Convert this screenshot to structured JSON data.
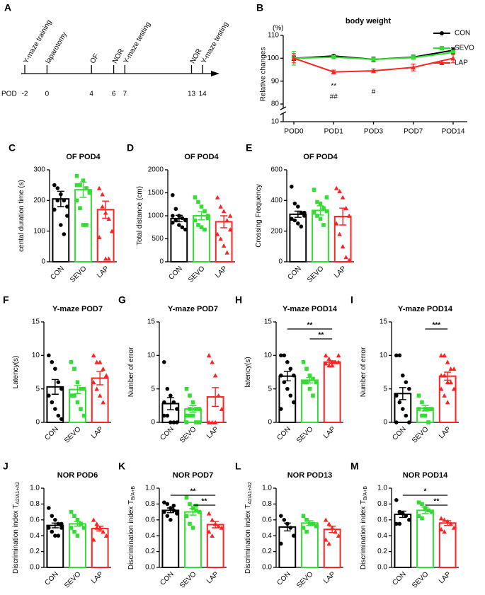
{
  "chart_data": [
    {
      "type": "timeline",
      "panel": "A",
      "axis_label": "POD",
      "events": [
        {
          "pod": -2,
          "label": "Y-maze training"
        },
        {
          "pod": 0,
          "label": "laparotomy"
        },
        {
          "pod": 4,
          "label": "OF"
        },
        {
          "pod": 6,
          "label": "NOR"
        },
        {
          "pod": 7,
          "label": "Y-maze testing"
        },
        {
          "pod": 13,
          "label": "NOR"
        },
        {
          "pod": 14,
          "label": "Y-maze testing"
        }
      ]
    },
    {
      "type": "line",
      "panel": "B",
      "title": "body weight",
      "ylabel": "Relative changes",
      "unit": "(%)",
      "categories": [
        "POD0",
        "POD1",
        "POD3",
        "POD7",
        "POD14"
      ],
      "series": [
        {
          "name": "CON",
          "color": "#000000",
          "marker": "circle",
          "values": [
            100,
            101,
            99.5,
            100.5,
            103.5
          ],
          "errors": [
            1,
            0.5,
            1,
            0.8,
            1
          ]
        },
        {
          "name": "SEVO",
          "color": "#33dd33",
          "marker": "square",
          "values": [
            100,
            100.5,
            99.5,
            100.3,
            102.5
          ],
          "errors": [
            3,
            0.5,
            0.8,
            0.8,
            1
          ]
        },
        {
          "name": "LAP",
          "color": "#ff2222",
          "marker": "triangle",
          "values": [
            100,
            94,
            94.5,
            96,
            100
          ],
          "errors": [
            2,
            0.8,
            0.8,
            1.5,
            2
          ]
        }
      ],
      "ylim": [
        10,
        110
      ],
      "axis_break": [
        10,
        80
      ],
      "yticks": [
        10,
        80,
        90,
        100,
        110
      ],
      "legend": "right",
      "annotations": [
        {
          "at": "POD1",
          "labels": [
            "**",
            "##"
          ]
        },
        {
          "at": "POD3",
          "labels": [
            "#"
          ]
        }
      ]
    },
    {
      "type": "bar",
      "panel": "C",
      "title": "OF POD4",
      "ylabel": "cental duration time (s)",
      "categories": [
        "CON",
        "SEVO",
        "LAP"
      ],
      "colors": [
        "#000000",
        "#33dd33",
        "#ff2222"
      ],
      "markers": [
        "circle",
        "square",
        "triangle"
      ],
      "values": [
        205,
        235,
        170
      ],
      "errors": [
        25,
        25,
        28
      ],
      "points": [
        [
          250,
          240,
          220,
          200,
          180,
          170,
          200,
          120,
          90,
          150
        ],
        [
          250,
          250,
          265,
          240,
          230,
          200,
          175,
          120,
          120,
          225,
          280
        ],
        [
          240,
          220,
          160,
          140,
          100,
          80,
          180,
          10,
          10
        ]
      ],
      "ylim": [
        0,
        300
      ],
      "yticks": [
        0,
        100,
        200,
        300
      ],
      "annotations": []
    },
    {
      "type": "bar",
      "panel": "D",
      "title": "OF POD4",
      "ylabel": "Total distance  (cm)",
      "categories": [
        "CON",
        "SEVO",
        "LAP"
      ],
      "colors": [
        "#000000",
        "#33dd33",
        "#ff2222"
      ],
      "markers": [
        "circle",
        "square",
        "triangle"
      ],
      "values": [
        940,
        1000,
        870
      ],
      "errors": [
        70,
        90,
        130
      ],
      "points": [
        [
          1450,
          1150,
          1000,
          950,
          900,
          850,
          900,
          800,
          750,
          700,
          1000
        ],
        [
          1400,
          1300,
          1200,
          1100,
          950,
          900,
          800,
          750,
          700,
          1000
        ],
        [
          1400,
          1200,
          1100,
          900,
          700,
          600,
          500,
          350,
          200,
          1000
        ]
      ],
      "ylim": [
        0,
        2000
      ],
      "yticks": [
        0,
        500,
        1000,
        1500,
        2000
      ],
      "annotations": []
    },
    {
      "type": "bar",
      "panel": "E",
      "title": "OF POD4",
      "ylabel": "Crossing Frequency",
      "categories": [
        "CON",
        "SEVO",
        "LAP"
      ],
      "colors": [
        "#000000",
        "#33dd33",
        "#ff2222"
      ],
      "markers": [
        "circle",
        "square",
        "triangle"
      ],
      "values": [
        310,
        335,
        295
      ],
      "errors": [
        20,
        30,
        55
      ],
      "points": [
        [
          490,
          380,
          360,
          320,
          300,
          280,
          270,
          250,
          230,
          320
        ],
        [
          470,
          390,
          380,
          350,
          330,
          320,
          300,
          280,
          240,
          420
        ],
        [
          480,
          460,
          420,
          350,
          300,
          250,
          180,
          100,
          30,
          10
        ]
      ],
      "ylim": [
        0,
        600
      ],
      "yticks": [
        0,
        200,
        400,
        600
      ],
      "annotations": []
    },
    {
      "type": "bar",
      "panel": "F",
      "title": "Y-maze POD7",
      "ylabel": "Latency(s)",
      "categories": [
        "CON",
        "SEVO",
        "LAP"
      ],
      "colors": [
        "#000000",
        "#33dd33",
        "#ff2222"
      ],
      "markers": [
        "circle",
        "square",
        "triangle"
      ],
      "values": [
        5.3,
        4.9,
        6.6
      ],
      "errors": [
        1.1,
        0.6,
        1.0
      ],
      "points": [
        [
          10,
          9,
          8,
          6,
          5,
          4,
          3,
          2,
          1,
          0.5
        ],
        [
          9,
          8,
          6,
          5,
          5,
          4,
          4,
          3,
          2,
          1
        ],
        [
          10,
          9,
          9,
          8,
          7,
          6,
          5,
          4,
          3
        ]
      ],
      "ylim": [
        0,
        15
      ],
      "yticks": [
        0,
        5,
        10,
        15
      ],
      "annotations": []
    },
    {
      "type": "bar",
      "panel": "G",
      "title": "Y-maze POD7",
      "ylabel": "Number of error",
      "categories": [
        "CON",
        "SEVO",
        "LAP"
      ],
      "colors": [
        "#000000",
        "#33dd33",
        "#ff2222"
      ],
      "markers": [
        "circle",
        "square",
        "triangle"
      ],
      "values": [
        2.8,
        2,
        3.8
      ],
      "errors": [
        0.9,
        0.5,
        1.4
      ],
      "points": [
        [
          9,
          5,
          4,
          3,
          2,
          1,
          1,
          0,
          0,
          0,
          3
        ],
        [
          5,
          4,
          3,
          2,
          2,
          1,
          1,
          1,
          0,
          0,
          0,
          2
        ],
        [
          10,
          9,
          7,
          4,
          2,
          0,
          0,
          0
        ]
      ],
      "ylim": [
        0,
        15
      ],
      "yticks": [
        0,
        5,
        10,
        15
      ],
      "annotations": []
    },
    {
      "type": "bar",
      "panel": "H",
      "title": "Y-maze POD14",
      "ylabel": "latency(s)",
      "categories": [
        "CON",
        "SEVO",
        "LAP"
      ],
      "colors": [
        "#000000",
        "#33dd33",
        "#ff2222"
      ],
      "markers": [
        "circle",
        "square",
        "triangle"
      ],
      "values": [
        6.9,
        6.3,
        9.0
      ],
      "errors": [
        0.7,
        0.4,
        0.2
      ],
      "points": [
        [
          10,
          10,
          9,
          8,
          7,
          7,
          6,
          5,
          4,
          3,
          2
        ],
        [
          9,
          8,
          7,
          6.5,
          6,
          6,
          6,
          5,
          4,
          6
        ],
        [
          10,
          9.5,
          9,
          9,
          9,
          8.8,
          8.5,
          8.5,
          9,
          10
        ]
      ],
      "ylim": [
        0,
        15
      ],
      "yticks": [
        0,
        5,
        10,
        15
      ],
      "annotations": [
        {
          "label": "**",
          "between": [
            "CON",
            "LAP"
          ]
        },
        {
          "label": "**",
          "between": [
            "SEVO",
            "LAP"
          ]
        }
      ]
    },
    {
      "type": "bar",
      "panel": "I",
      "title": "Y-maze POD14",
      "ylabel": "Number of error",
      "categories": [
        "CON",
        "SEVO",
        "LAP"
      ],
      "colors": [
        "#000000",
        "#33dd33",
        "#ff2222"
      ],
      "markers": [
        "circle",
        "square",
        "triangle"
      ],
      "values": [
        4.3,
        2.1,
        6.9
      ],
      "errors": [
        0.9,
        0.4,
        0.6
      ],
      "points": [
        [
          10,
          10,
          7,
          6,
          5,
          4,
          3,
          2,
          1,
          0,
          0
        ],
        [
          4,
          3,
          2,
          2,
          2,
          2,
          1,
          1,
          0
        ],
        [
          10,
          10,
          9,
          8,
          8,
          7,
          7,
          6,
          6,
          5,
          5,
          4,
          3
        ]
      ],
      "ylim": [
        0,
        15
      ],
      "yticks": [
        0,
        5,
        10,
        15
      ],
      "annotations": [
        {
          "label": "***",
          "between": [
            "SEVO",
            "LAP"
          ]
        }
      ]
    },
    {
      "type": "bar",
      "panel": "J",
      "title": "NOR POD6",
      "ylabel": "Discrimination index T",
      "ylabel_sub": "A2/A1+A2",
      "categories": [
        "CON",
        "SEVO",
        "LAP"
      ],
      "colors": [
        "#000000",
        "#33dd33",
        "#ff2222"
      ],
      "markers": [
        "circle",
        "square",
        "triangle"
      ],
      "values": [
        0.53,
        0.55,
        0.49
      ],
      "errors": [
        0.03,
        0.03,
        0.03
      ],
      "points": [
        [
          0.75,
          0.65,
          0.6,
          0.55,
          0.5,
          0.5,
          0.45,
          0.4,
          0.4,
          0.55
        ],
        [
          0.7,
          0.65,
          0.6,
          0.55,
          0.5,
          0.5,
          0.45,
          0.4,
          0.55
        ],
        [
          0.6,
          0.55,
          0.5,
          0.45,
          0.4,
          0.35,
          0.5
        ]
      ],
      "ylim": [
        0,
        1
      ],
      "yticks": [
        {
          "value": 0,
          "label": "0.0"
        },
        0.2,
        0.4,
        0.6,
        0.8,
        {
          "value": 1,
          "label": "1.0"
        }
      ],
      "annotations": []
    },
    {
      "type": "bar",
      "panel": "K",
      "title": "NOR POD7",
      "ylabel": "Discrimination index T",
      "ylabel_sub": "B/A+B",
      "categories": [
        "CON",
        "SEVO",
        "LAP"
      ],
      "colors": [
        "#000000",
        "#33dd33",
        "#ff2222"
      ],
      "markers": [
        "circle",
        "square",
        "triangle"
      ],
      "values": [
        0.72,
        0.7,
        0.54
      ],
      "errors": [
        0.03,
        0.04,
        0.04
      ],
      "points": [
        [
          0.82,
          0.8,
          0.75,
          0.72,
          0.7,
          0.7,
          0.65,
          0.6,
          0.78,
          0.68
        ],
        [
          0.88,
          0.8,
          0.75,
          0.72,
          0.7,
          0.65,
          0.55,
          0.5,
          0.78
        ],
        [
          0.68,
          0.6,
          0.55,
          0.52,
          0.5,
          0.45,
          0.4
        ]
      ],
      "ylim": [
        0,
        1
      ],
      "yticks": [
        {
          "value": 0,
          "label": "0.0"
        },
        0.2,
        0.4,
        0.6,
        0.8,
        {
          "value": 1,
          "label": "1.0"
        }
      ],
      "annotations": [
        {
          "label": "**",
          "between": [
            "CON",
            "LAP"
          ]
        },
        {
          "label": "**",
          "between": [
            "SEVO",
            "LAP"
          ]
        }
      ]
    },
    {
      "type": "bar",
      "panel": "L",
      "title": "NOR POD13",
      "ylabel": "Discrimination index T",
      "ylabel_sub": "A2/A1+A2",
      "categories": [
        "CON",
        "SEVO",
        "LAP"
      ],
      "colors": [
        "#000000",
        "#33dd33",
        "#ff2222"
      ],
      "markers": [
        "circle",
        "square",
        "triangle"
      ],
      "values": [
        0.51,
        0.56,
        0.48
      ],
      "errors": [
        0.05,
        0.03,
        0.04
      ],
      "points": [
        [
          0.65,
          0.6,
          0.55,
          0.5,
          0.4,
          0.3
        ],
        [
          0.65,
          0.6,
          0.55,
          0.55,
          0.52,
          0.5,
          0.45
        ],
        [
          0.6,
          0.55,
          0.5,
          0.45,
          0.4,
          0.35,
          0.3,
          0.5
        ]
      ],
      "ylim": [
        0,
        1
      ],
      "yticks": [
        {
          "value": 0,
          "label": "0.0"
        },
        0.2,
        0.4,
        0.6,
        0.8,
        {
          "value": 1,
          "label": "1.0"
        }
      ],
      "annotations": []
    },
    {
      "type": "bar",
      "panel": "M",
      "title": "NOR POD14",
      "ylabel": "Discrimination index T",
      "ylabel_sub": "B/A+B",
      "categories": [
        "CON",
        "SEVO",
        "LAP"
      ],
      "colors": [
        "#000000",
        "#33dd33",
        "#ff2222"
      ],
      "markers": [
        "circle",
        "square",
        "triangle"
      ],
      "values": [
        0.67,
        0.72,
        0.56
      ],
      "errors": [
        0.04,
        0.04,
        0.03
      ],
      "points": [
        [
          0.85,
          0.7,
          0.68,
          0.65,
          0.6,
          0.55,
          0.55
        ],
        [
          0.82,
          0.8,
          0.75,
          0.72,
          0.7,
          0.65,
          0.62
        ],
        [
          0.62,
          0.6,
          0.58,
          0.55,
          0.5,
          0.48,
          0.45
        ]
      ],
      "ylim": [
        0,
        1
      ],
      "yticks": [
        {
          "value": 0,
          "label": "0.0"
        },
        0.2,
        0.4,
        0.6,
        0.8,
        {
          "value": 1,
          "label": "1.0"
        }
      ],
      "annotations": [
        {
          "label": "*",
          "between": [
            "CON",
            "LAP"
          ]
        },
        {
          "label": "**",
          "between": [
            "SEVO",
            "LAP"
          ]
        }
      ]
    }
  ]
}
